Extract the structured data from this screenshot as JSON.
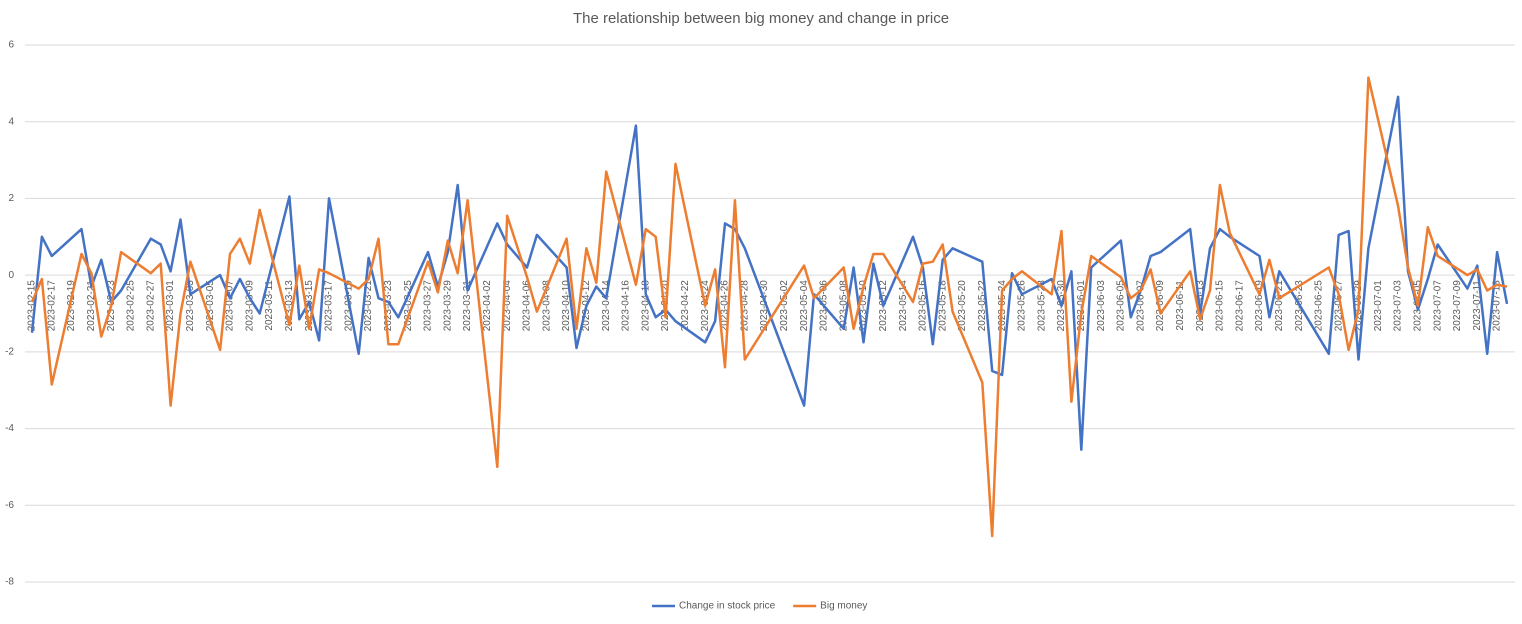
{
  "chart_data": {
    "type": "line",
    "title": "The relationship between big money and change in price",
    "x": [
      "2023-02-15",
      "2023-02-16",
      "2023-02-17",
      "2023-02-20",
      "2023-02-21",
      "2023-02-22",
      "2023-02-23",
      "2023-02-24",
      "2023-02-27",
      "2023-02-28",
      "2023-03-01",
      "2023-03-02",
      "2023-03-03",
      "2023-03-06",
      "2023-03-07",
      "2023-03-08",
      "2023-03-09",
      "2023-03-10",
      "2023-03-13",
      "2023-03-14",
      "2023-03-15",
      "2023-03-16",
      "2023-03-17",
      "2023-03-20",
      "2023-03-21",
      "2023-03-22",
      "2023-03-23",
      "2023-03-24",
      "2023-03-27",
      "2023-03-28",
      "2023-03-29",
      "2023-03-30",
      "2023-03-31",
      "2023-04-03",
      "2023-04-04",
      "2023-04-06",
      "2023-04-07",
      "2023-04-10",
      "2023-04-11",
      "2023-04-12",
      "2023-04-13",
      "2023-04-14",
      "2023-04-17",
      "2023-04-18",
      "2023-04-19",
      "2023-04-20",
      "2023-04-21",
      "2023-04-24",
      "2023-04-25",
      "2023-04-26",
      "2023-04-27",
      "2023-04-28",
      "2023-05-04",
      "2023-05-05",
      "2023-05-08",
      "2023-05-09",
      "2023-05-10",
      "2023-05-11",
      "2023-05-12",
      "2023-05-15",
      "2023-05-16",
      "2023-05-17",
      "2023-05-18",
      "2023-05-19",
      "2023-05-22",
      "2023-05-23",
      "2023-05-24",
      "2023-05-25",
      "2023-05-26",
      "2023-05-29",
      "2023-05-30",
      "2023-05-31",
      "2023-06-01",
      "2023-06-02",
      "2023-06-05",
      "2023-06-06",
      "2023-06-07",
      "2023-06-08",
      "2023-06-09",
      "2023-06-12",
      "2023-06-13",
      "2023-06-14",
      "2023-06-15",
      "2023-06-16",
      "2023-06-19",
      "2023-06-20",
      "2023-06-21",
      "2023-06-26",
      "2023-06-27",
      "2023-06-28",
      "2023-06-29",
      "2023-06-30",
      "2023-07-03",
      "2023-07-04",
      "2023-07-05",
      "2023-07-06",
      "2023-07-07",
      "2023-07-10",
      "2023-07-11",
      "2023-07-12",
      "2023-07-13",
      "2023-07-14"
    ],
    "series": [
      {
        "name": "Change in stock price",
        "color": "#4472c4",
        "values": [
          -1.5,
          1.0,
          0.5,
          1.2,
          -0.3,
          0.4,
          -0.7,
          -0.4,
          0.95,
          0.8,
          0.1,
          1.45,
          -0.5,
          0.0,
          -0.6,
          -0.1,
          -0.6,
          -1.0,
          2.05,
          -1.15,
          -0.7,
          -1.7,
          2.0,
          -2.05,
          0.45,
          -0.6,
          -0.7,
          -1.1,
          0.6,
          -0.3,
          0.6,
          2.35,
          -0.4,
          1.35,
          0.8,
          0.2,
          1.05,
          0.2,
          -1.9,
          -0.8,
          -0.3,
          -0.6,
          3.9,
          -0.5,
          -1.1,
          -0.9,
          -1.2,
          -1.75,
          -1.2,
          1.35,
          1.2,
          0.7,
          -3.4,
          -0.5,
          -1.4,
          0.2,
          -1.75,
          0.3,
          -0.8,
          1.0,
          0.2,
          -1.8,
          0.4,
          0.7,
          0.35,
          -2.5,
          -2.6,
          0.05,
          -0.5,
          -0.1,
          -0.8,
          0.1,
          -4.55,
          0.2,
          0.9,
          -1.1,
          -0.4,
          0.5,
          0.6,
          1.2,
          -1.0,
          0.7,
          1.2,
          1.0,
          0.5,
          -1.1,
          0.1,
          -2.05,
          1.05,
          1.15,
          -2.2,
          0.7,
          4.65,
          0.1,
          -0.9,
          -0.1,
          0.8,
          -0.35,
          0.25,
          -2.05,
          0.6,
          -0.75
        ]
      },
      {
        "name": "Big money",
        "color": "#ed7d31",
        "values": [
          -0.7,
          -0.1,
          -2.85,
          0.55,
          0.05,
          -1.6,
          -0.8,
          0.6,
          0.05,
          0.3,
          -3.4,
          -1.0,
          0.35,
          -1.95,
          0.55,
          0.95,
          0.3,
          1.7,
          -1.3,
          0.25,
          -1.4,
          0.15,
          0.05,
          -0.35,
          -0.1,
          0.95,
          -1.8,
          -1.8,
          0.35,
          -0.45,
          0.9,
          0.05,
          1.95,
          -5.0,
          1.55,
          -0.05,
          -0.95,
          0.95,
          -1.4,
          0.7,
          -0.2,
          2.7,
          -0.25,
          1.2,
          1.0,
          -1.1,
          2.9,
          -0.8,
          0.15,
          -2.4,
          1.95,
          -2.2,
          0.25,
          -0.6,
          0.2,
          -1.4,
          -0.3,
          0.55,
          0.55,
          -0.7,
          0.3,
          0.35,
          0.8,
          -0.95,
          -2.8,
          -6.8,
          -0.4,
          -0.1,
          0.1,
          -0.5,
          1.15,
          -3.3,
          -1.0,
          0.5,
          -0.05,
          -0.6,
          -0.4,
          0.15,
          -1.0,
          0.1,
          -1.15,
          -0.4,
          2.35,
          1.1,
          -0.5,
          0.4,
          -0.6,
          0.2,
          -0.5,
          -1.95,
          -0.9,
          5.15,
          1.8,
          0.2,
          -0.8,
          1.25,
          0.5,
          0.0,
          0.15,
          -0.4,
          -0.25,
          -0.3
        ]
      }
    ],
    "xlim": [
      "2023-02-15",
      "2023-07-14"
    ],
    "xticks": [
      "2023-02-15",
      "2023-02-17",
      "2023-02-19",
      "2023-02-21",
      "2023-02-23",
      "2023-02-25",
      "2023-02-27",
      "2023-03-01",
      "2023-03-03",
      "2023-03-05",
      "2023-03-07",
      "2023-03-09",
      "2023-03-11",
      "2023-03-13",
      "2023-03-15",
      "2023-03-17",
      "2023-03-19",
      "2023-03-21",
      "2023-03-23",
      "2023-03-25",
      "2023-03-27",
      "2023-03-29",
      "2023-03-31",
      "2023-04-02",
      "2023-04-04",
      "2023-04-06",
      "2023-04-08",
      "2023-04-10",
      "2023-04-12",
      "2023-04-14",
      "2023-04-16",
      "2023-04-18",
      "2023-04-20",
      "2023-04-22",
      "2023-04-24",
      "2023-04-26",
      "2023-04-28",
      "2023-04-30",
      "2023-05-02",
      "2023-05-04",
      "2023-05-06",
      "2023-05-08",
      "2023-05-10",
      "2023-05-12",
      "2023-05-14",
      "2023-05-16",
      "2023-05-18",
      "2023-05-20",
      "2023-05-22",
      "2023-05-24",
      "2023-05-26",
      "2023-05-28",
      "2023-05-30",
      "2023-06-01",
      "2023-06-03",
      "2023-06-05",
      "2023-06-07",
      "2023-06-09",
      "2023-06-11",
      "2023-06-13",
      "2023-06-15",
      "2023-06-17",
      "2023-06-19",
      "2023-06-21",
      "2023-06-23",
      "2023-06-25",
      "2023-06-27",
      "2023-06-29",
      "2023-07-01",
      "2023-07-03",
      "2023-07-05",
      "2023-07-07",
      "2023-07-09",
      "2023-07-11",
      "2023-07-13"
    ],
    "ylim": [
      -8,
      6
    ],
    "yticks": [
      -8,
      -6,
      -4,
      -2,
      0,
      2,
      4,
      6
    ],
    "grid": true,
    "legend": "bottom"
  }
}
